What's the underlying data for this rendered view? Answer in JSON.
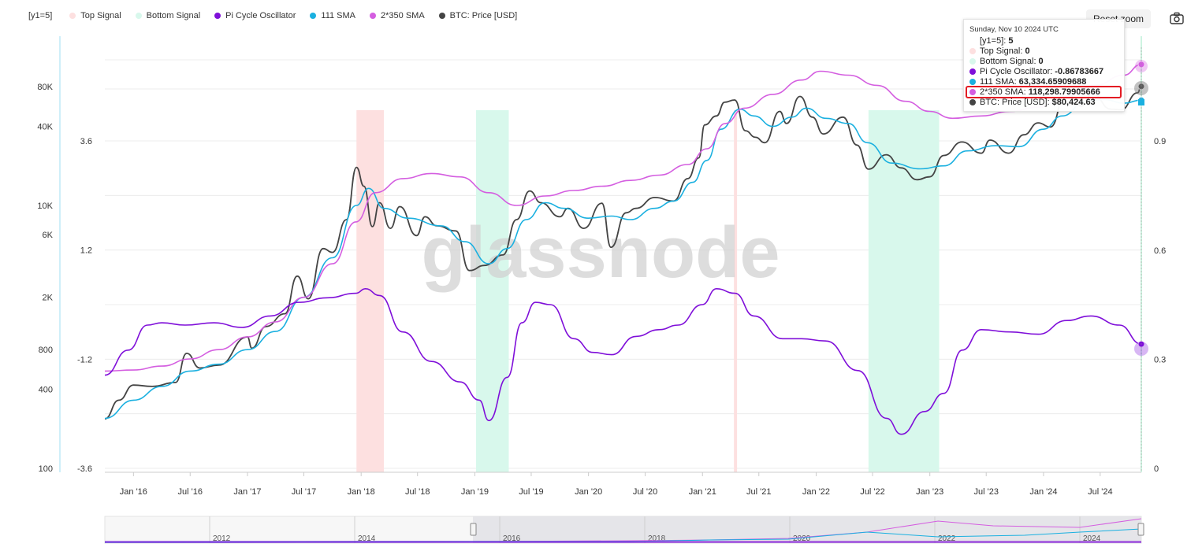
{
  "legend": {
    "items": [
      {
        "label": "[y1=5]",
        "color": ""
      },
      {
        "label": "Top Signal",
        "color": "#fde0e0"
      },
      {
        "label": "Bottom Signal",
        "color": "#d8f8ec"
      },
      {
        "label": "Pi Cycle Oscillator",
        "color": "#7f0fd9"
      },
      {
        "label": "111 SMA",
        "color": "#1ab0e0"
      },
      {
        "label": "2*350 SMA",
        "color": "#d45ee0"
      },
      {
        "label": "BTC: Price [USD]",
        "color": "#444444"
      }
    ]
  },
  "toolbar": {
    "reset_zoom_label": "Reset zoom",
    "camera_icon": "camera-icon"
  },
  "watermark": "glassnode",
  "tooltip": {
    "date": "Sunday, Nov 10 2024 UTC",
    "rows": [
      {
        "label": "[y1=5]:",
        "value": "5",
        "color": ""
      },
      {
        "label": "Top Signal:",
        "value": "0",
        "color": "#fde0e0"
      },
      {
        "label": "Bottom Signal:",
        "value": "0",
        "color": "#d8f8ec"
      },
      {
        "label": "Pi Cycle Oscillator:",
        "value": "-0.86783667",
        "color": "#7f0fd9"
      },
      {
        "label": "111 SMA:",
        "value": "63,334.65909688",
        "color": "#1ab0e0"
      },
      {
        "label": "2*350 SMA:",
        "value": "118,298.79905666",
        "color": "#d45ee0"
      },
      {
        "label": "BTC: Price [USD]:",
        "value": "$80,424.63",
        "color": "#444444"
      }
    ]
  },
  "navigator": {
    "year_labels": [
      "2012",
      "2014",
      "2016",
      "2018",
      "2020",
      "2022",
      "2024"
    ]
  },
  "chart_data": {
    "type": "line",
    "x_range": [
      "2015-10-01",
      "2024-11-10"
    ],
    "x_ticks": [
      "Jan '16",
      "Jul '16",
      "Jan '17",
      "Jul '17",
      "Jan '18",
      "Jul '18",
      "Jan '19",
      "Jul '19",
      "Jan '20",
      "Jul '20",
      "Jan '21",
      "Jul '21",
      "Jan '22",
      "Jul '22",
      "Jan '23",
      "Jul '23",
      "Jan '24",
      "Jul '24"
    ],
    "y_axes": {
      "price_log": {
        "ticks": [
          "80K",
          "40K",
          "10K",
          "6K",
          "2K",
          "800",
          "400",
          "100"
        ],
        "range": [
          100,
          130000
        ]
      },
      "oscillator": {
        "ticks": [
          "3.6",
          "1.2",
          "-1.2",
          "-3.6"
        ],
        "range": [
          -3.6,
          3.6
        ]
      },
      "signal": {
        "ticks": [
          "0.9",
          "0.6",
          "0.3",
          "0"
        ],
        "range": [
          0,
          1
        ]
      }
    },
    "top_signal_bands": [
      [
        "2017-12-17",
        "2018-03-15"
      ],
      [
        "2021-04-12",
        "2021-04-22"
      ]
    ],
    "bottom_signal_bands": [
      [
        "2019-01-05",
        "2019-04-20"
      ],
      [
        "2022-06-18",
        "2023-01-31"
      ]
    ],
    "series": [
      {
        "name": "BTC: Price [USD]",
        "color": "#444444",
        "points": [
          [
            "2015-10-01",
            238
          ],
          [
            "2015-11-15",
            330
          ],
          [
            "2016-01-01",
            430
          ],
          [
            "2016-03-01",
            420
          ],
          [
            "2016-05-15",
            450
          ],
          [
            "2016-06-20",
            750
          ],
          [
            "2016-08-01",
            580
          ],
          [
            "2016-10-01",
            610
          ],
          [
            "2017-01-01",
            1000
          ],
          [
            "2017-01-15",
            820
          ],
          [
            "2017-03-01",
            1200
          ],
          [
            "2017-05-01",
            1500
          ],
          [
            "2017-06-10",
            2900
          ],
          [
            "2017-07-15",
            1950
          ],
          [
            "2017-09-01",
            4700
          ],
          [
            "2017-10-01",
            4400
          ],
          [
            "2017-11-15",
            7800
          ],
          [
            "2017-12-17",
            19500
          ],
          [
            "2018-01-10",
            14000
          ],
          [
            "2018-02-06",
            6900
          ],
          [
            "2018-03-01",
            10500
          ],
          [
            "2018-04-05",
            6700
          ],
          [
            "2018-05-05",
            9800
          ],
          [
            "2018-06-28",
            5900
          ],
          [
            "2018-07-25",
            8200
          ],
          [
            "2018-09-01",
            7000
          ],
          [
            "2018-11-01",
            6400
          ],
          [
            "2018-12-15",
            3200
          ],
          [
            "2019-02-01",
            3500
          ],
          [
            "2019-04-01",
            4200
          ],
          [
            "2019-05-15",
            7800
          ],
          [
            "2019-06-26",
            12900
          ],
          [
            "2019-08-01",
            10500
          ],
          [
            "2019-10-01",
            8200
          ],
          [
            "2019-10-27",
            9500
          ],
          [
            "2019-12-17",
            6700
          ],
          [
            "2020-02-13",
            10400
          ],
          [
            "2020-03-13",
            4800
          ],
          [
            "2020-05-01",
            8800
          ],
          [
            "2020-06-01",
            9500
          ],
          [
            "2020-08-01",
            11500
          ],
          [
            "2020-09-30",
            10800
          ],
          [
            "2020-11-15",
            16000
          ],
          [
            "2020-12-20",
            23000
          ],
          [
            "2021-01-08",
            41000
          ],
          [
            "2021-02-15",
            48000
          ],
          [
            "2021-03-13",
            61000
          ],
          [
            "2021-04-14",
            63500
          ],
          [
            "2021-05-19",
            37000
          ],
          [
            "2021-06-20",
            33000
          ],
          [
            "2021-07-20",
            30000
          ],
          [
            "2021-09-06",
            52000
          ],
          [
            "2021-09-28",
            42000
          ],
          [
            "2021-11-10",
            67500
          ],
          [
            "2021-12-20",
            47000
          ],
          [
            "2022-01-24",
            35000
          ],
          [
            "2022-03-28",
            47000
          ],
          [
            "2022-05-12",
            28800
          ],
          [
            "2022-06-18",
            18900
          ],
          [
            "2022-08-14",
            24300
          ],
          [
            "2022-10-01",
            19300
          ],
          [
            "2022-11-21",
            15700
          ],
          [
            "2022-12-31",
            16500
          ],
          [
            "2023-02-15",
            24000
          ],
          [
            "2023-04-14",
            30400
          ],
          [
            "2023-06-15",
            25000
          ],
          [
            "2023-07-13",
            31400
          ],
          [
            "2023-09-11",
            25000
          ],
          [
            "2023-10-30",
            34500
          ],
          [
            "2023-12-15",
            42500
          ],
          [
            "2024-01-23",
            39500
          ],
          [
            "2024-03-14",
            73000
          ],
          [
            "2024-05-01",
            57000
          ],
          [
            "2024-06-05",
            71000
          ],
          [
            "2024-08-05",
            54000
          ],
          [
            "2024-09-06",
            53500
          ],
          [
            "2024-10-29",
            72000
          ],
          [
            "2024-11-10",
            80424.63
          ]
        ]
      },
      {
        "name": "111 SMA",
        "color": "#1ab0e0",
        "points": [
          [
            "2015-10-01",
            240
          ],
          [
            "2016-01-01",
            330
          ],
          [
            "2016-04-01",
            420
          ],
          [
            "2016-07-01",
            550
          ],
          [
            "2016-10-01",
            620
          ],
          [
            "2017-01-01",
            800
          ],
          [
            "2017-04-01",
            1100
          ],
          [
            "2017-07-01",
            2000
          ],
          [
            "2017-10-01",
            4000
          ],
          [
            "2017-12-17",
            10000
          ],
          [
            "2018-01-25",
            13500
          ],
          [
            "2018-03-15",
            9500
          ],
          [
            "2018-06-01",
            8000
          ],
          [
            "2018-09-15",
            7000
          ],
          [
            "2018-12-01",
            5300
          ],
          [
            "2019-02-15",
            3600
          ],
          [
            "2019-04-15",
            4700
          ],
          [
            "2019-06-15",
            7800
          ],
          [
            "2019-08-15",
            10500
          ],
          [
            "2019-10-15",
            9500
          ],
          [
            "2019-12-31",
            8000
          ],
          [
            "2020-03-15",
            8300
          ],
          [
            "2020-05-15",
            7800
          ],
          [
            "2020-07-31",
            9500
          ],
          [
            "2020-10-01",
            10800
          ],
          [
            "2020-12-01",
            15000
          ],
          [
            "2021-01-15",
            22000
          ],
          [
            "2021-03-01",
            38000
          ],
          [
            "2021-05-01",
            54000
          ],
          [
            "2021-06-15",
            48000
          ],
          [
            "2021-08-15",
            40000
          ],
          [
            "2021-10-15",
            47000
          ],
          [
            "2021-12-01",
            55000
          ],
          [
            "2022-02-01",
            46000
          ],
          [
            "2022-04-15",
            42000
          ],
          [
            "2022-06-15",
            30000
          ],
          [
            "2022-09-01",
            21000
          ],
          [
            "2022-12-01",
            19000
          ],
          [
            "2023-02-15",
            20000
          ],
          [
            "2023-05-01",
            26000
          ],
          [
            "2023-08-01",
            28500
          ],
          [
            "2023-10-15",
            28000
          ],
          [
            "2023-12-31",
            38000
          ],
          [
            "2024-03-01",
            48000
          ],
          [
            "2024-05-15",
            62000
          ],
          [
            "2024-07-15",
            64000
          ],
          [
            "2024-09-15",
            60000
          ],
          [
            "2024-11-10",
            63334.66
          ]
        ]
      },
      {
        "name": "2*350 SMA",
        "color": "#d45ee0",
        "points": [
          [
            "2015-10-01",
            550
          ],
          [
            "2016-01-01",
            560
          ],
          [
            "2016-04-01",
            600
          ],
          [
            "2016-07-01",
            680
          ],
          [
            "2016-10-01",
            800
          ],
          [
            "2017-01-01",
            1000
          ],
          [
            "2017-04-01",
            1300
          ],
          [
            "2017-07-01",
            2000
          ],
          [
            "2017-10-01",
            3600
          ],
          [
            "2017-12-15",
            7500
          ],
          [
            "2018-02-15",
            12500
          ],
          [
            "2018-05-15",
            16000
          ],
          [
            "2018-08-15",
            17500
          ],
          [
            "2018-11-15",
            16500
          ],
          [
            "2019-02-15",
            12500
          ],
          [
            "2019-05-15",
            10000
          ],
          [
            "2019-08-15",
            11800
          ],
          [
            "2019-11-15",
            13000
          ],
          [
            "2020-02-15",
            14000
          ],
          [
            "2020-05-15",
            15500
          ],
          [
            "2020-08-15",
            17000
          ],
          [
            "2020-11-15",
            20500
          ],
          [
            "2021-01-15",
            27000
          ],
          [
            "2021-03-15",
            42000
          ],
          [
            "2021-05-15",
            55000
          ],
          [
            "2021-08-15",
            70000
          ],
          [
            "2021-11-15",
            90000
          ],
          [
            "2022-01-15",
            105000
          ],
          [
            "2022-04-15",
            98000
          ],
          [
            "2022-07-15",
            82000
          ],
          [
            "2022-10-15",
            62000
          ],
          [
            "2022-12-31",
            52000
          ],
          [
            "2023-03-15",
            46000
          ],
          [
            "2023-06-15",
            48000
          ],
          [
            "2023-09-15",
            52000
          ],
          [
            "2023-12-15",
            56000
          ],
          [
            "2024-03-15",
            68000
          ],
          [
            "2024-06-15",
            82000
          ],
          [
            "2024-09-15",
            98000
          ],
          [
            "2024-11-10",
            118298.8
          ]
        ]
      },
      {
        "name": "Pi Cycle Oscillator",
        "color": "#7f0fd9",
        "points": [
          [
            "2015-10-01",
            -1.55
          ],
          [
            "2015-12-15",
            -1.0
          ],
          [
            "2016-02-15",
            -0.45
          ],
          [
            "2016-04-01",
            -0.4
          ],
          [
            "2016-06-15",
            -0.45
          ],
          [
            "2016-09-15",
            -0.4
          ],
          [
            "2016-12-15",
            -0.5
          ],
          [
            "2017-03-15",
            -0.25
          ],
          [
            "2017-06-15",
            0.05
          ],
          [
            "2017-09-15",
            0.15
          ],
          [
            "2017-12-15",
            0.25
          ],
          [
            "2018-01-15",
            0.35
          ],
          [
            "2018-03-01",
            0.2
          ],
          [
            "2018-05-15",
            -0.6
          ],
          [
            "2018-08-15",
            -1.25
          ],
          [
            "2018-11-15",
            -1.7
          ],
          [
            "2019-01-15",
            -2.1
          ],
          [
            "2019-02-15",
            -2.55
          ],
          [
            "2019-04-15",
            -1.6
          ],
          [
            "2019-06-01",
            -0.4
          ],
          [
            "2019-07-15",
            0.05
          ],
          [
            "2019-09-01",
            0.0
          ],
          [
            "2019-11-15",
            -0.75
          ],
          [
            "2020-01-15",
            -1.05
          ],
          [
            "2020-03-15",
            -1.1
          ],
          [
            "2020-06-01",
            -0.7
          ],
          [
            "2020-08-15",
            -0.55
          ],
          [
            "2020-10-15",
            -0.45
          ],
          [
            "2020-12-31",
            0.0
          ],
          [
            "2021-02-15",
            0.35
          ],
          [
            "2021-04-15",
            0.25
          ],
          [
            "2021-06-15",
            -0.25
          ],
          [
            "2021-09-15",
            -0.75
          ],
          [
            "2021-11-15",
            -0.75
          ],
          [
            "2022-02-01",
            -0.8
          ],
          [
            "2022-05-15",
            -1.45
          ],
          [
            "2022-08-15",
            -2.5
          ],
          [
            "2022-10-01",
            -2.85
          ],
          [
            "2022-12-15",
            -2.35
          ],
          [
            "2023-02-15",
            -1.95
          ],
          [
            "2023-04-15",
            -1.0
          ],
          [
            "2023-06-15",
            -0.55
          ],
          [
            "2023-09-15",
            -0.6
          ],
          [
            "2023-12-15",
            -0.65
          ],
          [
            "2024-03-15",
            -0.35
          ],
          [
            "2024-06-01",
            -0.25
          ],
          [
            "2024-09-01",
            -0.45
          ],
          [
            "2024-11-10",
            -0.86783667
          ]
        ]
      }
    ]
  }
}
